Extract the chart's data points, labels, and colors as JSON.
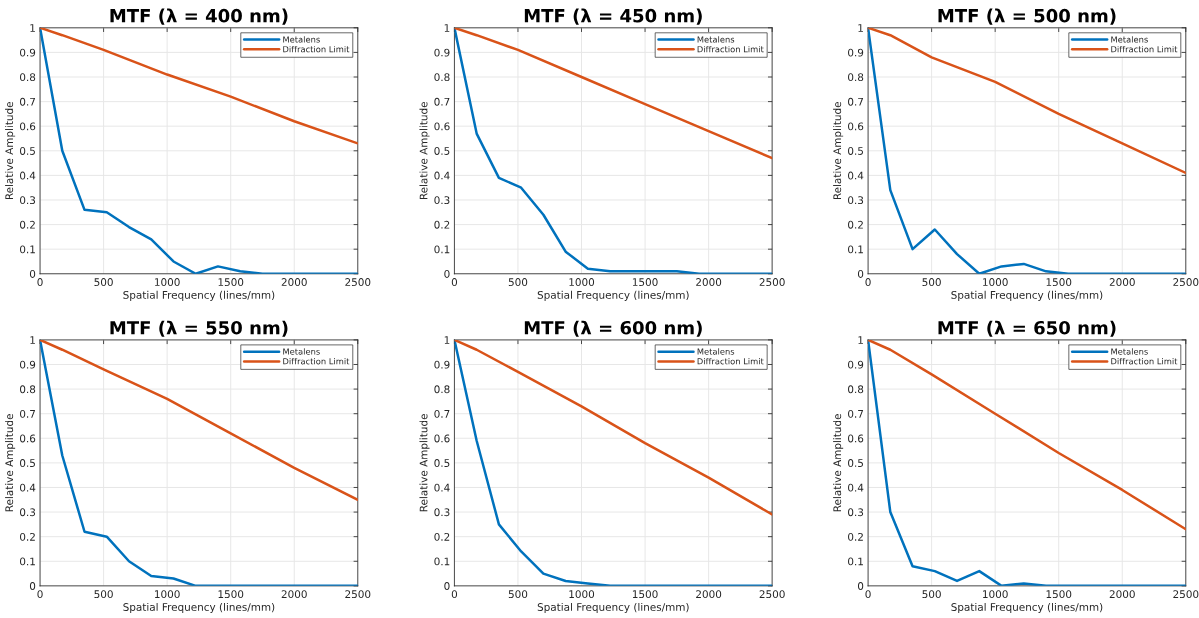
{
  "chart_data": [
    {
      "type": "line",
      "title": "MTF (λ = 400 nm)",
      "xlabel": "Spatial Frequency (lines/mm)",
      "ylabel": "Relative Amplitude",
      "xlim": [
        0,
        2500
      ],
      "ylim": [
        0,
        1
      ],
      "xticks": [
        0,
        500,
        1000,
        1500,
        2000,
        2500
      ],
      "yticks": [
        0,
        0.1,
        0.2,
        0.3,
        0.4,
        0.5,
        0.6,
        0.7,
        0.8,
        0.9,
        1
      ],
      "grid": true,
      "legend": "top right",
      "series": [
        {
          "name": "Metalens",
          "color": "#0072bd",
          "x": [
            0,
            175,
            350,
            525,
            700,
            875,
            1050,
            1225,
            1400,
            1575,
            1750,
            1925,
            2100,
            2275,
            2450,
            2500
          ],
          "values": [
            1,
            0.5,
            0.26,
            0.25,
            0.19,
            0.14,
            0.05,
            0.0,
            0.03,
            0.01,
            0.0,
            0.0,
            0.0,
            0.0,
            0.0,
            0.0
          ]
        },
        {
          "name": "Diffraction Limit",
          "color": "#d95319",
          "x": [
            0,
            175,
            500,
            1000,
            1500,
            2000,
            2500
          ],
          "values": [
            1,
            0.97,
            0.91,
            0.81,
            0.72,
            0.62,
            0.53
          ]
        }
      ]
    },
    {
      "type": "line",
      "title": "MTF (λ = 450 nm)",
      "xlabel": "Spatial Frequency (lines/mm)",
      "ylabel": "Relative Amplitude",
      "xlim": [
        0,
        2500
      ],
      "ylim": [
        0,
        1
      ],
      "xticks": [
        0,
        500,
        1000,
        1500,
        2000,
        2500
      ],
      "yticks": [
        0,
        0.1,
        0.2,
        0.3,
        0.4,
        0.5,
        0.6,
        0.7,
        0.8,
        0.9,
        1
      ],
      "grid": true,
      "legend": "top right",
      "series": [
        {
          "name": "Metalens",
          "color": "#0072bd",
          "x": [
            0,
            175,
            350,
            525,
            700,
            875,
            1050,
            1225,
            1400,
            1575,
            1750,
            1925,
            2100,
            2275,
            2450,
            2500
          ],
          "values": [
            1,
            0.57,
            0.39,
            0.35,
            0.24,
            0.09,
            0.02,
            0.01,
            0.01,
            0.01,
            0.01,
            0.0,
            0.0,
            0.0,
            0.0,
            0.0
          ]
        },
        {
          "name": "Diffraction Limit",
          "color": "#d95319",
          "x": [
            0,
            175,
            500,
            1000,
            1500,
            2000,
            2500
          ],
          "values": [
            1,
            0.97,
            0.91,
            0.8,
            0.69,
            0.58,
            0.47
          ]
        }
      ]
    },
    {
      "type": "line",
      "title": "MTF (λ = 500 nm)",
      "xlabel": "Spatial Frequency (lines/mm)",
      "ylabel": "Relative Amplitude",
      "xlim": [
        0,
        2500
      ],
      "ylim": [
        0,
        1
      ],
      "xticks": [
        0,
        500,
        1000,
        1500,
        2000,
        2500
      ],
      "yticks": [
        0,
        0.1,
        0.2,
        0.3,
        0.4,
        0.5,
        0.6,
        0.7,
        0.8,
        0.9,
        1
      ],
      "grid": true,
      "legend": "top right",
      "series": [
        {
          "name": "Metalens",
          "color": "#0072bd",
          "x": [
            0,
            175,
            350,
            525,
            700,
            875,
            1050,
            1225,
            1400,
            1575,
            1750,
            1925,
            2100,
            2275,
            2450,
            2500
          ],
          "values": [
            1,
            0.34,
            0.1,
            0.18,
            0.08,
            0.0,
            0.03,
            0.04,
            0.01,
            0.0,
            0.0,
            0.0,
            0.0,
            0.0,
            0.0,
            0.0
          ]
        },
        {
          "name": "Diffraction Limit",
          "color": "#d95319",
          "x": [
            0,
            175,
            500,
            1000,
            1500,
            2000,
            2500
          ],
          "values": [
            1,
            0.97,
            0.88,
            0.78,
            0.65,
            0.53,
            0.41
          ]
        }
      ]
    },
    {
      "type": "line",
      "title": "MTF (λ = 550 nm)",
      "xlabel": "Spatial Frequency (lines/mm)",
      "ylabel": "Relative Amplitude",
      "xlim": [
        0,
        2500
      ],
      "ylim": [
        0,
        1
      ],
      "xticks": [
        0,
        500,
        1000,
        1500,
        2000,
        2500
      ],
      "yticks": [
        0,
        0.1,
        0.2,
        0.3,
        0.4,
        0.5,
        0.6,
        0.7,
        0.8,
        0.9,
        1
      ],
      "grid": true,
      "legend": "top right",
      "series": [
        {
          "name": "Metalens",
          "color": "#0072bd",
          "x": [
            0,
            175,
            350,
            525,
            700,
            875,
            1050,
            1225,
            1400,
            1575,
            1750,
            1925,
            2100,
            2275,
            2450,
            2500
          ],
          "values": [
            1,
            0.53,
            0.22,
            0.2,
            0.1,
            0.04,
            0.03,
            0.0,
            0.0,
            0.0,
            0.0,
            0.0,
            0.0,
            0.0,
            0.0,
            0.0
          ]
        },
        {
          "name": "Diffraction Limit",
          "color": "#d95319",
          "x": [
            0,
            175,
            500,
            1000,
            1500,
            2000,
            2500
          ],
          "values": [
            1,
            0.96,
            0.88,
            0.76,
            0.62,
            0.48,
            0.35
          ]
        }
      ]
    },
    {
      "type": "line",
      "title": "MTF (λ = 600 nm)",
      "xlabel": "Spatial Frequency (lines/mm)",
      "ylabel": "Relative Amplitude",
      "xlim": [
        0,
        2500
      ],
      "ylim": [
        0,
        1
      ],
      "xticks": [
        0,
        500,
        1000,
        1500,
        2000,
        2500
      ],
      "yticks": [
        0,
        0.1,
        0.2,
        0.3,
        0.4,
        0.5,
        0.6,
        0.7,
        0.8,
        0.9,
        1
      ],
      "grid": true,
      "legend": "top right",
      "series": [
        {
          "name": "Metalens",
          "color": "#0072bd",
          "x": [
            0,
            175,
            350,
            525,
            700,
            875,
            1050,
            1225,
            1400,
            1575,
            1750,
            1925,
            2100,
            2275,
            2450,
            2500
          ],
          "values": [
            1,
            0.59,
            0.25,
            0.14,
            0.05,
            0.02,
            0.01,
            0.0,
            0.0,
            0.0,
            0.0,
            0.0,
            0.0,
            0.0,
            0.0,
            0.0
          ]
        },
        {
          "name": "Diffraction Limit",
          "color": "#d95319",
          "x": [
            0,
            175,
            500,
            1000,
            1500,
            2000,
            2500
          ],
          "values": [
            1,
            0.96,
            0.87,
            0.73,
            0.58,
            0.44,
            0.29
          ]
        }
      ]
    },
    {
      "type": "line",
      "title": "MTF (λ = 650 nm)",
      "xlabel": "Spatial Frequency (lines/mm)",
      "ylabel": "Relative Amplitude",
      "xlim": [
        0,
        2500
      ],
      "ylim": [
        0,
        1
      ],
      "xticks": [
        0,
        500,
        1000,
        1500,
        2000,
        2500
      ],
      "yticks": [
        0,
        0.1,
        0.2,
        0.3,
        0.4,
        0.5,
        0.6,
        0.7,
        0.8,
        0.9,
        1
      ],
      "grid": true,
      "legend": "top right",
      "series": [
        {
          "name": "Metalens",
          "color": "#0072bd",
          "x": [
            0,
            175,
            350,
            525,
            700,
            875,
            1050,
            1225,
            1400,
            1575,
            1750,
            1925,
            2100,
            2275,
            2450,
            2500
          ],
          "values": [
            1,
            0.3,
            0.08,
            0.06,
            0.02,
            0.06,
            0.0,
            0.01,
            0.0,
            0.0,
            0.0,
            0.0,
            0.0,
            0.0,
            0.0,
            0.0
          ]
        },
        {
          "name": "Diffraction Limit",
          "color": "#d95319",
          "x": [
            0,
            175,
            500,
            1000,
            1500,
            2000,
            2500
          ],
          "values": [
            1,
            0.96,
            0.86,
            0.7,
            0.54,
            0.39,
            0.23
          ]
        }
      ]
    }
  ]
}
